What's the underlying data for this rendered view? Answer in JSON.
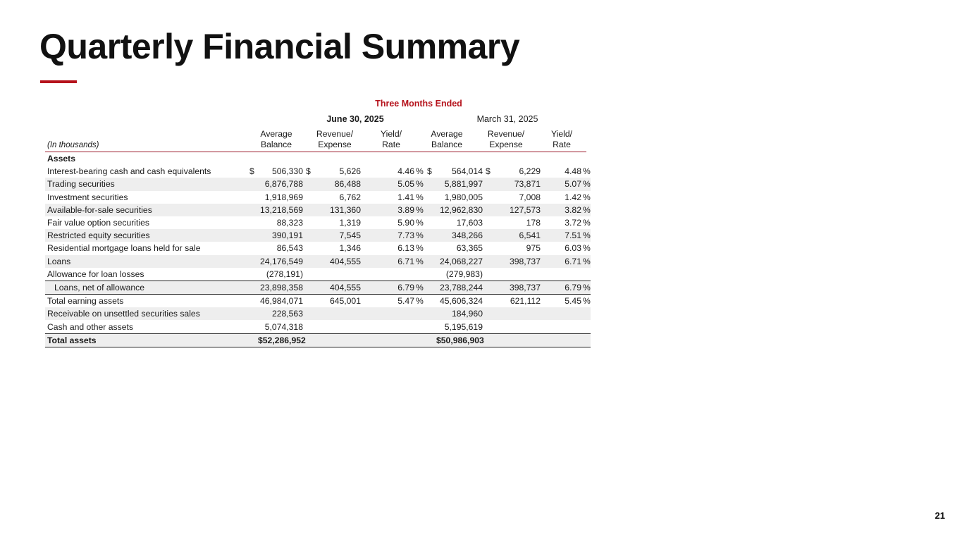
{
  "slide": {
    "title": "Quarterly Financial Summary",
    "page_number": "21",
    "accent_color": "#b5121b"
  },
  "table": {
    "group_header": "Three Months Ended",
    "period_1": "June 30, 2025",
    "period_2": "March 31, 2025",
    "units_label": "(In thousands)",
    "col_headers": {
      "avg_balance_1": "Average",
      "avg_balance_2": "Balance",
      "rev_exp_1": "Revenue/",
      "rev_exp_2": "Expense",
      "yield_1": "Yield/",
      "yield_2": "Rate"
    },
    "section_label": "Assets",
    "dollar_sign": "$",
    "pct_sign": "%",
    "rows": [
      {
        "label": "Interest-bearing cash and cash equivalents",
        "j_bal": "506,330",
        "j_rev": "5,626",
        "j_yld": "4.46",
        "m_bal": "564,014",
        "m_rev": "6,229",
        "m_yld": "4.48"
      },
      {
        "label": "Trading securities",
        "j_bal": "6,876,788",
        "j_rev": "86,488",
        "j_yld": "5.05",
        "m_bal": "5,881,997",
        "m_rev": "73,871",
        "m_yld": "5.07"
      },
      {
        "label": "Investment securities",
        "j_bal": "1,918,969",
        "j_rev": "6,762",
        "j_yld": "1.41",
        "m_bal": "1,980,005",
        "m_rev": "7,008",
        "m_yld": "1.42"
      },
      {
        "label": "Available-for-sale securities",
        "j_bal": "13,218,569",
        "j_rev": "131,360",
        "j_yld": "3.89",
        "m_bal": "12,962,830",
        "m_rev": "127,573",
        "m_yld": "3.82"
      },
      {
        "label": "Fair value option securities",
        "j_bal": "88,323",
        "j_rev": "1,319",
        "j_yld": "5.90",
        "m_bal": "17,603",
        "m_rev": "178",
        "m_yld": "3.72"
      },
      {
        "label": "Restricted equity securities",
        "j_bal": "390,191",
        "j_rev": "7,545",
        "j_yld": "7.73",
        "m_bal": "348,266",
        "m_rev": "6,541",
        "m_yld": "7.51"
      },
      {
        "label": "Residential mortgage loans held for sale",
        "j_bal": "86,543",
        "j_rev": "1,346",
        "j_yld": "6.13",
        "m_bal": "63,365",
        "m_rev": "975",
        "m_yld": "6.03"
      },
      {
        "label": "Loans",
        "j_bal": "24,176,549",
        "j_rev": "404,555",
        "j_yld": "6.71",
        "m_bal": "24,068,227",
        "m_rev": "398,737",
        "m_yld": "6.71"
      },
      {
        "label": "Allowance for loan losses",
        "j_bal": "(278,191)",
        "j_rev": "",
        "j_yld": "",
        "m_bal": "(279,983)",
        "m_rev": "",
        "m_yld": ""
      },
      {
        "label": "Loans, net of allowance",
        "j_bal": "23,898,358",
        "j_rev": "404,555",
        "j_yld": "6.79",
        "m_bal": "23,788,244",
        "m_rev": "398,737",
        "m_yld": "6.79"
      },
      {
        "label": "Total earning assets",
        "j_bal": "46,984,071",
        "j_rev": "645,001",
        "j_yld": "5.47",
        "m_bal": "45,606,324",
        "m_rev": "621,112",
        "m_yld": "5.45"
      },
      {
        "label": "Receivable on unsettled securities sales",
        "j_bal": "228,563",
        "j_rev": "",
        "j_yld": "",
        "m_bal": "184,960",
        "m_rev": "",
        "m_yld": ""
      },
      {
        "label": "Cash and other assets",
        "j_bal": "5,074,318",
        "j_rev": "",
        "j_yld": "",
        "m_bal": "5,195,619",
        "m_rev": "",
        "m_yld": ""
      },
      {
        "label": "Total assets",
        "j_bal": "$52,286,952",
        "j_rev": "",
        "j_yld": "",
        "m_bal": "$50,986,903",
        "m_rev": "",
        "m_yld": ""
      }
    ]
  }
}
